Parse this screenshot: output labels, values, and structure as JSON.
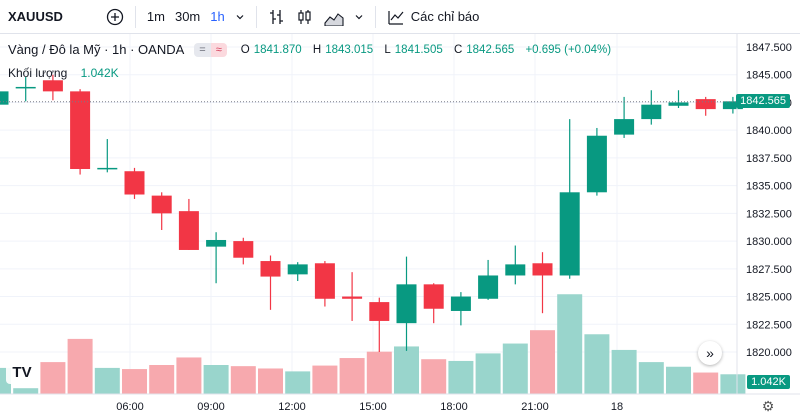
{
  "toolbar": {
    "symbol": "XAUUSD",
    "add_symbol_icon": "plus-circle-icon",
    "intervals": [
      "1m",
      "30m",
      "1h"
    ],
    "active_interval": "1h",
    "indicators_label": "Các chỉ báo"
  },
  "legend": {
    "title": "Vàng / Đô la Mỹ · 1h · OANDA",
    "pill_left": "=",
    "pill_right": "≈",
    "o_key": "O",
    "o_val": "1841.870",
    "h_key": "H",
    "h_val": "1843.015",
    "l_key": "L",
    "l_val": "1841.505",
    "c_key": "C",
    "c_val": "1842.565",
    "change": "+0.695 (+0.04%)",
    "volume_label": "Khối lượng",
    "volume_value": "1.042K"
  },
  "price_badge": "1842.565",
  "volume_badge": "1.042K",
  "colors": {
    "up": "#089981",
    "down": "#f23645",
    "up_vol": "#99d5cc",
    "down_vol": "#f7a9ae"
  },
  "chart_data": {
    "type": "candlestick",
    "price_ticks": [
      "1847.500",
      "1845.000",
      "1842.500",
      "1840.000",
      "1837.500",
      "1835.000",
      "1832.500",
      "1830.000",
      "1827.500",
      "1825.000",
      "1822.500",
      "1820.000"
    ],
    "time_ticks": [
      "06:00",
      "09:00",
      "12:00",
      "15:00",
      "18:00",
      "21:00",
      "18"
    ],
    "ylim": [
      1817.5,
      1848.5
    ],
    "last_price": 1842.565,
    "candles": [
      {
        "o": 1842.3,
        "h": 1844.0,
        "l": 1841.0,
        "c": 1843.5
      },
      {
        "o": 1843.8,
        "h": 1844.8,
        "l": 1842.6,
        "c": 1843.9
      },
      {
        "o": 1844.5,
        "h": 1845.0,
        "l": 1842.7,
        "c": 1843.5
      },
      {
        "o": 1843.5,
        "h": 1843.7,
        "l": 1836.0,
        "c": 1836.5
      },
      {
        "o": 1836.5,
        "h": 1839.2,
        "l": 1836.2,
        "c": 1836.6
      },
      {
        "o": 1836.3,
        "h": 1836.6,
        "l": 1833.8,
        "c": 1834.2
      },
      {
        "o": 1834.1,
        "h": 1834.4,
        "l": 1831.0,
        "c": 1832.5
      },
      {
        "o": 1832.7,
        "h": 1833.8,
        "l": 1829.2,
        "c": 1829.2
      },
      {
        "o": 1829.5,
        "h": 1830.8,
        "l": 1826.2,
        "c": 1830.1
      },
      {
        "o": 1830.0,
        "h": 1830.3,
        "l": 1827.9,
        "c": 1828.5
      },
      {
        "o": 1828.2,
        "h": 1828.7,
        "l": 1823.8,
        "c": 1826.8
      },
      {
        "o": 1827.0,
        "h": 1828.1,
        "l": 1826.4,
        "c": 1827.9
      },
      {
        "o": 1828.0,
        "h": 1828.2,
        "l": 1824.1,
        "c": 1824.8
      },
      {
        "o": 1825.0,
        "h": 1827.2,
        "l": 1822.8,
        "c": 1824.8
      },
      {
        "o": 1824.5,
        "h": 1824.9,
        "l": 1820.0,
        "c": 1822.8
      },
      {
        "o": 1822.6,
        "h": 1828.6,
        "l": 1820.1,
        "c": 1826.1
      },
      {
        "o": 1826.1,
        "h": 1826.2,
        "l": 1822.6,
        "c": 1823.9
      },
      {
        "o": 1823.7,
        "h": 1825.4,
        "l": 1822.4,
        "c": 1825.0
      },
      {
        "o": 1824.8,
        "h": 1828.3,
        "l": 1824.7,
        "c": 1826.9
      },
      {
        "o": 1826.9,
        "h": 1829.6,
        "l": 1826.1,
        "c": 1827.9
      },
      {
        "o": 1828.0,
        "h": 1829.0,
        "l": 1823.5,
        "c": 1826.9
      },
      {
        "o": 1826.9,
        "h": 1841.0,
        "l": 1826.6,
        "c": 1834.4
      },
      {
        "o": 1834.4,
        "h": 1840.2,
        "l": 1834.1,
        "c": 1839.5
      },
      {
        "o": 1839.6,
        "h": 1843.0,
        "l": 1839.3,
        "c": 1841.0
      },
      {
        "o": 1841.0,
        "h": 1843.6,
        "l": 1840.5,
        "c": 1842.3
      },
      {
        "o": 1842.2,
        "h": 1843.6,
        "l": 1842.0,
        "c": 1842.5
      },
      {
        "o": 1842.8,
        "h": 1843.0,
        "l": 1841.3,
        "c": 1841.9
      },
      {
        "o": 1841.9,
        "h": 1843.0,
        "l": 1841.5,
        "c": 1842.6
      }
    ],
    "volumes": [
      0.45,
      0.1,
      0.55,
      0.95,
      0.45,
      0.43,
      0.5,
      0.63,
      0.5,
      0.48,
      0.44,
      0.39,
      0.49,
      0.62,
      0.73,
      0.82,
      0.6,
      0.57,
      0.7,
      0.87,
      1.1,
      1.72,
      1.03,
      0.76,
      0.55,
      0.47,
      0.37,
      0.34
    ]
  }
}
